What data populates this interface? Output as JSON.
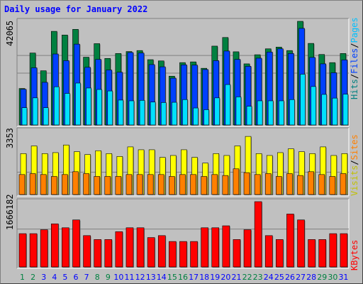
{
  "title": "Daily usage for January 2022",
  "colors": {
    "hits": "#008040",
    "files": "#0040ff",
    "pages": "#00e0ff",
    "visits": "#ffff00",
    "sites": "#ff8000",
    "kbytes": "#ff0000",
    "weekend": "#008040",
    "weekday": "#0000ff",
    "title": "#0000ff"
  },
  "right_labels": {
    "hits_files_pages": [
      {
        "text": "Hits",
        "color": "#008080"
      },
      {
        "text": "/",
        "color": "#000000"
      },
      {
        "text": "Files",
        "color": "#0040ff"
      },
      {
        "text": "/",
        "color": "#000000"
      },
      {
        "text": "Pages",
        "color": "#00c0ff"
      }
    ],
    "visits_sites": [
      {
        "text": "Visits",
        "color": "#c0c000"
      },
      {
        "text": "/",
        "color": "#000000"
      },
      {
        "text": "Sites",
        "color": "#ff8000"
      }
    ],
    "kbytes": [
      {
        "text": "KBytes",
        "color": "#ff0000"
      }
    ]
  },
  "chart_data": [
    {
      "type": "bar",
      "title": "Daily usage for January 2022",
      "x": [
        "1",
        "2",
        "3",
        "4",
        "5",
        "6",
        "7",
        "8",
        "9",
        "10",
        "11",
        "12",
        "13",
        "14",
        "15",
        "16",
        "17",
        "18",
        "19",
        "20",
        "21",
        "22",
        "23",
        "24",
        "25",
        "26",
        "27",
        "28",
        "29",
        "30",
        "31"
      ],
      "weekend_days": [
        "1",
        "2",
        "8",
        "9",
        "15",
        "16",
        "22",
        "23",
        "29",
        "30"
      ],
      "ymax_label": "42065",
      "ylim": [
        0,
        42065
      ],
      "series": [
        {
          "name": "Hits",
          "values": [
            14800,
            29200,
            22000,
            38000,
            36500,
            38800,
            27500,
            33000,
            27000,
            29000,
            29800,
            30200,
            26500,
            26000,
            19800,
            25300,
            25600,
            23000,
            32000,
            35500,
            29700,
            24800,
            28500,
            30900,
            31600,
            30200,
            42065,
            33100,
            28600,
            25300,
            29000
          ]
        },
        {
          "name": "Files",
          "values": [
            14500,
            23200,
            17300,
            28800,
            26100,
            32800,
            23400,
            26600,
            22300,
            21400,
            29400,
            29200,
            24500,
            23600,
            19000,
            24400,
            24300,
            22500,
            26100,
            30000,
            26600,
            23800,
            27100,
            29600,
            30900,
            29000,
            39200,
            27400,
            24800,
            21200,
            26400
          ]
        },
        {
          "name": "Pages",
          "values": [
            7000,
            11000,
            7000,
            15500,
            12800,
            17000,
            15000,
            14400,
            13800,
            10100,
            9800,
            10000,
            9300,
            9100,
            9200,
            10300,
            6900,
            6200,
            11000,
            16400,
            11400,
            7600,
            9800,
            9800,
            9800,
            10300,
            20600,
            15600,
            12400,
            10900,
            12500
          ]
        }
      ]
    },
    {
      "type": "bar",
      "ymax_label": "3353",
      "ylim": [
        0,
        3353
      ],
      "series": [
        {
          "name": "Visits",
          "values": [
            2150,
            2550,
            2150,
            2200,
            2600,
            2250,
            2100,
            2300,
            2150,
            2000,
            2500,
            2350,
            2350,
            1950,
            2050,
            2350,
            1950,
            1650,
            2150,
            2050,
            2550,
            3050,
            2150,
            2050,
            2200,
            2400,
            2250,
            2150,
            2500,
            2050,
            2150
          ]
        },
        {
          "name": "Sites",
          "values": [
            1050,
            1100,
            1050,
            950,
            1050,
            1200,
            1100,
            950,
            950,
            950,
            1050,
            1050,
            1050,
            1050,
            950,
            1050,
            1050,
            950,
            1050,
            1000,
            1350,
            1150,
            1050,
            1100,
            950,
            1100,
            1000,
            1200,
            1050,
            950,
            1100
          ]
        }
      ]
    },
    {
      "type": "bar",
      "ymax_label": "1666182",
      "ylim": [
        0,
        1666182
      ],
      "series": [
        {
          "name": "KBytes",
          "values": [
            850000,
            850000,
            950000,
            1100000,
            1000000,
            1200000,
            800000,
            700000,
            700000,
            900000,
            1000000,
            1000000,
            750000,
            800000,
            650000,
            650000,
            650000,
            1000000,
            1000000,
            1050000,
            700000,
            950000,
            1666182,
            800000,
            700000,
            1350000,
            1200000,
            700000,
            700000,
            850000,
            850000
          ]
        }
      ]
    }
  ]
}
